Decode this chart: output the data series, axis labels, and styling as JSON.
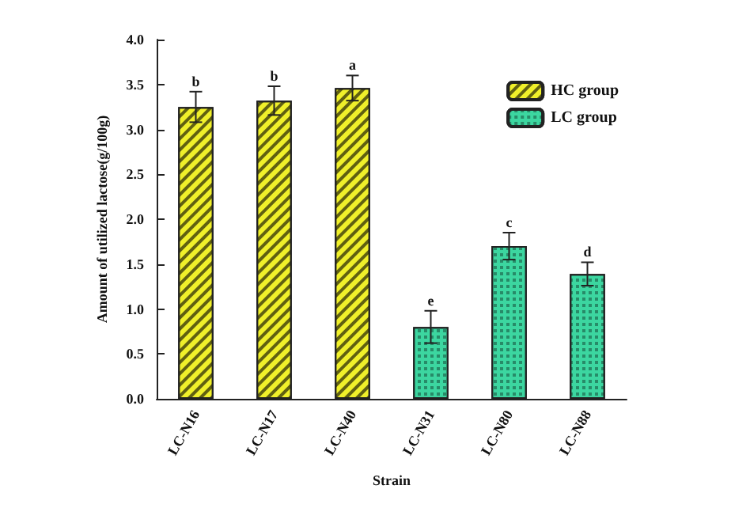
{
  "chart_data": {
    "type": "bar",
    "xlabel": "Strain",
    "ylabel": "Amount of utilized lactose(g/100g)",
    "categories": [
      "LC-N16",
      "LC-N17",
      "LC-N40",
      "LC-N31",
      "LC-N80",
      "LC-N88"
    ],
    "series": [
      {
        "name": "HC group",
        "color": "#f0f02a",
        "values": [
          3.25,
          3.32,
          3.46,
          null,
          null,
          null
        ],
        "errors": [
          0.17,
          0.16,
          0.14,
          null,
          null,
          null
        ]
      },
      {
        "name": "LC group",
        "color": "#3cd6a0",
        "values": [
          null,
          null,
          null,
          0.8,
          1.7,
          1.39
        ],
        "errors": [
          null,
          null,
          null,
          0.18,
          0.15,
          0.13
        ]
      }
    ],
    "ylim": [
      0,
      4
    ],
    "yticks": [
      {
        "value": 0,
        "label": "0.0"
      },
      0.5,
      {
        "value": 1,
        "label": "1.0"
      },
      1.5,
      {
        "value": 2,
        "label": "2.0"
      },
      2.5,
      {
        "value": 3,
        "label": "3.0"
      },
      3.5,
      {
        "value": 4,
        "label": "4.0"
      }
    ],
    "grid": false,
    "legend": "top right",
    "annotations": [
      {
        "text": "b",
        "x": "LC-N16",
        "y": 3.42
      },
      {
        "text": "b",
        "x": "LC-N17",
        "y": 3.48
      },
      {
        "text": "a",
        "x": "LC-N40",
        "y": 3.6
      },
      {
        "text": "e",
        "x": "LC-N31",
        "y": 0.98
      },
      {
        "text": "c",
        "x": "LC-N80",
        "y": 1.85
      },
      {
        "text": "d",
        "x": "LC-N88",
        "y": 1.52
      }
    ]
  }
}
